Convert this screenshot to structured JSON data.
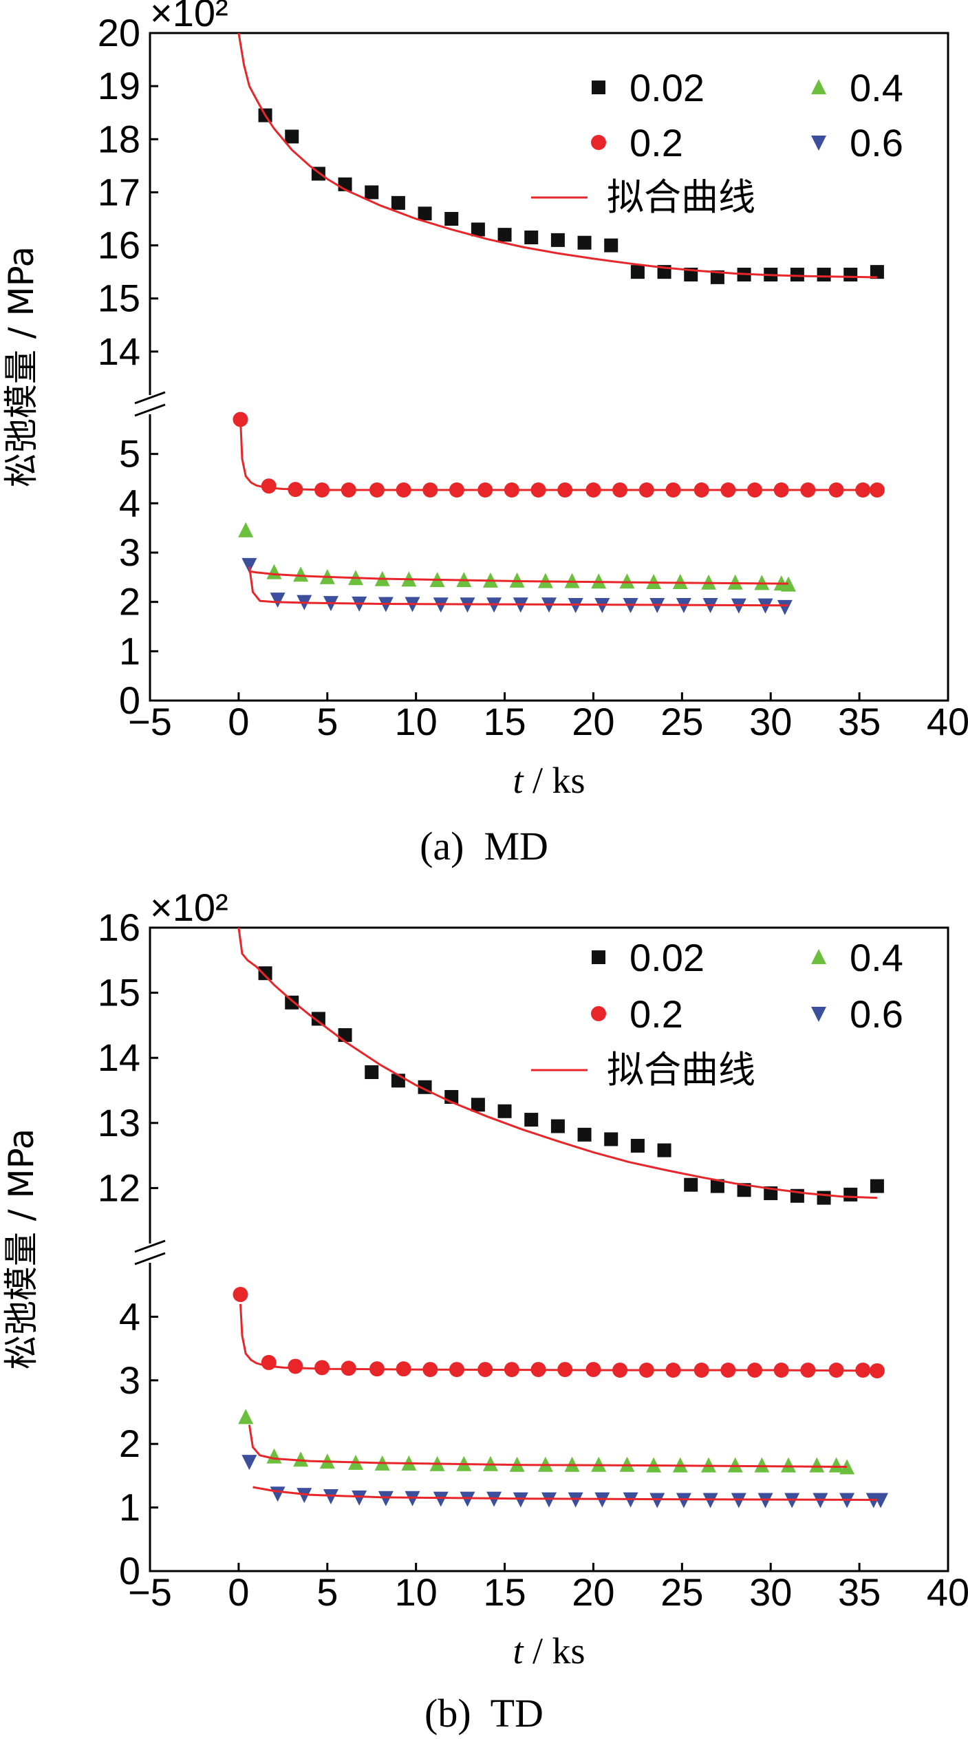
{
  "figure": {
    "captions": [
      "(a)  MD",
      "(b)  TD"
    ]
  },
  "colors": {
    "0.02": "#111111",
    "0.2": "#e8262a",
    "0.4": "#6cbf3c",
    "0.6": "#3c4f9c",
    "fit": "#e8262a"
  },
  "chart_data": [
    {
      "type": "scatter",
      "panel": "a",
      "caption": "(a)  MD",
      "xlabel_italic": "t",
      "xlabel_rest": " / ks",
      "ylabel": "松弛模量 / MPa",
      "multiplier_text": "×10²",
      "xlim": [
        -5,
        40
      ],
      "xticks": [
        -5,
        0,
        5,
        10,
        15,
        20,
        25,
        30,
        35,
        40
      ],
      "xtick_labels": [
        "−5",
        "0",
        "5",
        "10",
        "15",
        "20",
        "25",
        "30",
        "35",
        "40"
      ],
      "y_axis_break": true,
      "ylim_lower": [
        0,
        6
      ],
      "ylim_upper": [
        13,
        20
      ],
      "yticks_lower": [
        0,
        1,
        2,
        3,
        4,
        5
      ],
      "yticks_upper": [
        14,
        15,
        16,
        17,
        18,
        19,
        20
      ],
      "legend_position": "top-right",
      "legend": [
        {
          "label": "0.02",
          "marker": "square",
          "color": "#111111"
        },
        {
          "label": "0.4",
          "marker": "triangle-up",
          "color": "#6cbf3c"
        },
        {
          "label": "0.2",
          "marker": "circle",
          "color": "#e8262a"
        },
        {
          "label": "0.6",
          "marker": "triangle-down",
          "color": "#3c4f9c"
        },
        {
          "label": "拟合曲线",
          "marker": "line",
          "color": "#e8262a"
        }
      ],
      "series": [
        {
          "name": "0.02",
          "marker": "square",
          "color": "#111111",
          "x": [
            1.5,
            3.0,
            4.5,
            6.0,
            7.5,
            9.0,
            10.5,
            12.0,
            13.5,
            15.0,
            16.5,
            18.0,
            19.5,
            21.0,
            22.5,
            24.0,
            25.5,
            27.0,
            28.5,
            30.0,
            31.5,
            33.0,
            34.5,
            36.0
          ],
          "y": [
            18.45,
            18.05,
            17.35,
            17.15,
            17.0,
            16.8,
            16.6,
            16.5,
            16.3,
            16.2,
            16.15,
            16.1,
            16.05,
            16.0,
            15.5,
            15.5,
            15.45,
            15.4,
            15.45,
            15.45,
            15.45,
            15.45,
            15.45,
            15.5
          ]
        },
        {
          "name": "0.2",
          "marker": "circle",
          "color": "#e8262a",
          "x": [
            0.1,
            1.7,
            3.2,
            4.7,
            6.2,
            7.8,
            9.3,
            10.8,
            12.3,
            13.9,
            15.4,
            16.9,
            18.4,
            20.0,
            21.5,
            23.0,
            24.5,
            26.1,
            27.6,
            29.1,
            30.6,
            32.1,
            33.7,
            35.2,
            36.0
          ],
          "y": [
            5.7,
            4.35,
            4.28,
            4.27,
            4.27,
            4.27,
            4.27,
            4.27,
            4.27,
            4.27,
            4.27,
            4.27,
            4.27,
            4.27,
            4.27,
            4.27,
            4.27,
            4.27,
            4.27,
            4.27,
            4.27,
            4.27,
            4.27,
            4.27,
            4.27
          ]
        },
        {
          "name": "0.4",
          "marker": "triangle-up",
          "color": "#6cbf3c",
          "x": [
            0.4,
            2.0,
            3.5,
            5.0,
            6.6,
            8.1,
            9.6,
            11.2,
            12.7,
            14.2,
            15.7,
            17.3,
            18.8,
            20.3,
            21.9,
            23.4,
            24.9,
            26.5,
            28.0,
            29.5,
            30.6,
            31.0
          ],
          "y": [
            3.45,
            2.6,
            2.55,
            2.5,
            2.48,
            2.46,
            2.45,
            2.44,
            2.44,
            2.43,
            2.43,
            2.42,
            2.42,
            2.41,
            2.41,
            2.4,
            2.4,
            2.39,
            2.39,
            2.38,
            2.37,
            2.35
          ]
        },
        {
          "name": "0.6",
          "marker": "triangle-down",
          "color": "#3c4f9c",
          "x": [
            0.6,
            2.2,
            3.7,
            5.2,
            6.8,
            8.3,
            9.8,
            11.4,
            12.9,
            14.4,
            15.9,
            17.5,
            19.0,
            20.5,
            22.1,
            23.6,
            25.1,
            26.6,
            28.2,
            29.7,
            30.8
          ],
          "y": [
            2.75,
            2.05,
            2.0,
            1.98,
            1.97,
            1.96,
            1.96,
            1.95,
            1.95,
            1.95,
            1.95,
            1.95,
            1.94,
            1.94,
            1.94,
            1.94,
            1.94,
            1.94,
            1.93,
            1.93,
            1.9
          ]
        }
      ],
      "fits": [
        {
          "name": "0.02",
          "x": [
            0,
            0.3,
            0.6,
            1.0,
            1.5,
            2,
            3,
            4,
            5,
            6,
            8,
            10,
            12,
            14,
            16,
            18,
            20,
            22,
            24,
            26,
            28,
            30,
            32,
            34,
            36
          ],
          "y": [
            20.0,
            19.4,
            19.0,
            18.75,
            18.45,
            18.2,
            17.8,
            17.5,
            17.25,
            17.05,
            16.75,
            16.5,
            16.3,
            16.12,
            15.97,
            15.85,
            15.75,
            15.66,
            15.58,
            15.52,
            15.47,
            15.44,
            15.42,
            15.41,
            15.4
          ]
        },
        {
          "name": "0.2",
          "x": [
            0.1,
            0.2,
            0.4,
            0.7,
            1.0,
            1.5,
            2.5,
            5,
            10,
            20,
            30,
            36
          ],
          "y": [
            5.7,
            4.9,
            4.55,
            4.42,
            4.36,
            4.32,
            4.29,
            4.27,
            4.27,
            4.27,
            4.27,
            4.27
          ]
        },
        {
          "name": "0.4",
          "x": [
            0.6,
            1.0,
            2,
            4,
            8,
            16,
            24,
            31
          ],
          "y": [
            2.62,
            2.6,
            2.56,
            2.52,
            2.47,
            2.42,
            2.39,
            2.37
          ]
        },
        {
          "name": "0.6",
          "x": [
            0.6,
            0.8,
            1.2,
            2,
            4,
            8,
            16,
            24,
            31
          ],
          "y": [
            2.72,
            2.2,
            2.02,
            2.0,
            1.98,
            1.96,
            1.95,
            1.94,
            1.93
          ]
        }
      ]
    },
    {
      "type": "scatter",
      "panel": "b",
      "caption": "(b)  TD",
      "xlabel_italic": "t",
      "xlabel_rest": " / ks",
      "ylabel": "松弛模量 / MPa",
      "multiplier_text": "×10²",
      "xlim": [
        -5,
        40
      ],
      "xticks": [
        -5,
        0,
        5,
        10,
        15,
        20,
        25,
        30,
        35,
        40
      ],
      "xtick_labels": [
        "−5",
        "0",
        "5",
        "10",
        "15",
        "20",
        "25",
        "30",
        "35",
        "40"
      ],
      "y_axis_break": true,
      "ylim_lower": [
        0,
        5
      ],
      "ylim_upper": [
        11,
        16
      ],
      "yticks_lower": [
        0,
        1,
        2,
        3,
        4
      ],
      "yticks_upper": [
        12,
        13,
        14,
        15,
        16
      ],
      "legend_position": "top-right",
      "legend": [
        {
          "label": "0.02",
          "marker": "square",
          "color": "#111111"
        },
        {
          "label": "0.4",
          "marker": "triangle-up",
          "color": "#6cbf3c"
        },
        {
          "label": "0.2",
          "marker": "circle",
          "color": "#e8262a"
        },
        {
          "label": "0.6",
          "marker": "triangle-down",
          "color": "#3c4f9c"
        },
        {
          "label": "拟合曲线",
          "marker": "line",
          "color": "#e8262a"
        }
      ],
      "series": [
        {
          "name": "0.02",
          "marker": "square",
          "color": "#111111",
          "x": [
            1.5,
            3.0,
            4.5,
            6.0,
            7.5,
            9.0,
            10.5,
            12.0,
            13.5,
            15.0,
            16.5,
            18.0,
            19.5,
            21.0,
            22.5,
            24.0,
            25.5,
            27.0,
            28.5,
            30.0,
            31.5,
            33.0,
            34.5,
            36.0
          ],
          "y": [
            15.3,
            14.85,
            14.6,
            14.35,
            13.78,
            13.65,
            13.55,
            13.4,
            13.28,
            13.18,
            13.05,
            12.95,
            12.82,
            12.75,
            12.65,
            12.58,
            12.05,
            12.03,
            11.97,
            11.92,
            11.88,
            11.85,
            11.9,
            12.03
          ]
        },
        {
          "name": "0.2",
          "marker": "circle",
          "color": "#e8262a",
          "x": [
            0.1,
            1.7,
            3.2,
            4.7,
            6.2,
            7.8,
            9.3,
            10.8,
            12.3,
            13.9,
            15.4,
            16.9,
            18.4,
            20.0,
            21.5,
            23.0,
            24.5,
            26.1,
            27.6,
            29.1,
            30.6,
            32.1,
            33.7,
            35.2,
            36.0
          ],
          "y": [
            4.35,
            3.28,
            3.22,
            3.2,
            3.19,
            3.18,
            3.18,
            3.17,
            3.17,
            3.17,
            3.17,
            3.17,
            3.17,
            3.17,
            3.16,
            3.16,
            3.16,
            3.16,
            3.16,
            3.16,
            3.16,
            3.16,
            3.16,
            3.16,
            3.15
          ]
        },
        {
          "name": "0.4",
          "marker": "triangle-up",
          "color": "#6cbf3c",
          "x": [
            0.4,
            2.0,
            3.5,
            5.0,
            6.6,
            8.1,
            9.6,
            11.2,
            12.7,
            14.2,
            15.7,
            17.3,
            18.8,
            20.3,
            21.9,
            23.4,
            24.9,
            26.5,
            28.0,
            29.5,
            31.0,
            32.6,
            33.7,
            34.3
          ],
          "y": [
            2.42,
            1.8,
            1.75,
            1.72,
            1.7,
            1.69,
            1.69,
            1.68,
            1.68,
            1.68,
            1.67,
            1.67,
            1.67,
            1.67,
            1.67,
            1.66,
            1.66,
            1.66,
            1.66,
            1.66,
            1.66,
            1.66,
            1.66,
            1.63
          ]
        },
        {
          "name": "0.6",
          "marker": "triangle-down",
          "color": "#3c4f9c",
          "x": [
            0.6,
            2.2,
            3.7,
            5.2,
            6.8,
            8.3,
            9.8,
            11.4,
            12.9,
            14.4,
            15.9,
            17.5,
            19.0,
            20.5,
            22.1,
            23.6,
            25.1,
            26.6,
            28.2,
            29.7,
            31.2,
            32.8,
            34.3,
            35.8,
            36.2
          ],
          "y": [
            1.72,
            1.22,
            1.2,
            1.18,
            1.16,
            1.15,
            1.15,
            1.14,
            1.14,
            1.14,
            1.13,
            1.13,
            1.13,
            1.13,
            1.13,
            1.12,
            1.12,
            1.12,
            1.12,
            1.12,
            1.12,
            1.12,
            1.12,
            1.12,
            1.12
          ]
        }
      ],
      "fits": [
        {
          "name": "0.02",
          "x": [
            0,
            0.2,
            0.5,
            1,
            2,
            3,
            4,
            6,
            8,
            10,
            12,
            14,
            16,
            18,
            20,
            22,
            24,
            26,
            28,
            30,
            32,
            34,
            36
          ],
          "y": [
            16.0,
            15.6,
            15.5,
            15.4,
            15.12,
            14.88,
            14.66,
            14.25,
            13.89,
            13.58,
            13.32,
            13.1,
            12.9,
            12.72,
            12.55,
            12.4,
            12.28,
            12.17,
            12.07,
            11.99,
            11.92,
            11.87,
            11.85
          ]
        },
        {
          "name": "0.2",
          "x": [
            0.1,
            0.2,
            0.4,
            0.7,
            1.0,
            1.5,
            2.5,
            5,
            10,
            20,
            30,
            36
          ],
          "y": [
            4.2,
            3.7,
            3.42,
            3.32,
            3.27,
            3.23,
            3.2,
            3.18,
            3.17,
            3.16,
            3.16,
            3.15
          ]
        },
        {
          "name": "0.4",
          "x": [
            0.6,
            0.8,
            1.2,
            2,
            4,
            8,
            16,
            24,
            34.3
          ],
          "y": [
            2.3,
            1.95,
            1.82,
            1.77,
            1.73,
            1.7,
            1.67,
            1.66,
            1.64
          ]
        },
        {
          "name": "0.6",
          "x": [
            0.8,
            2,
            4,
            8,
            16,
            24,
            36
          ],
          "y": [
            1.32,
            1.26,
            1.2,
            1.16,
            1.14,
            1.13,
            1.12
          ]
        }
      ]
    }
  ]
}
